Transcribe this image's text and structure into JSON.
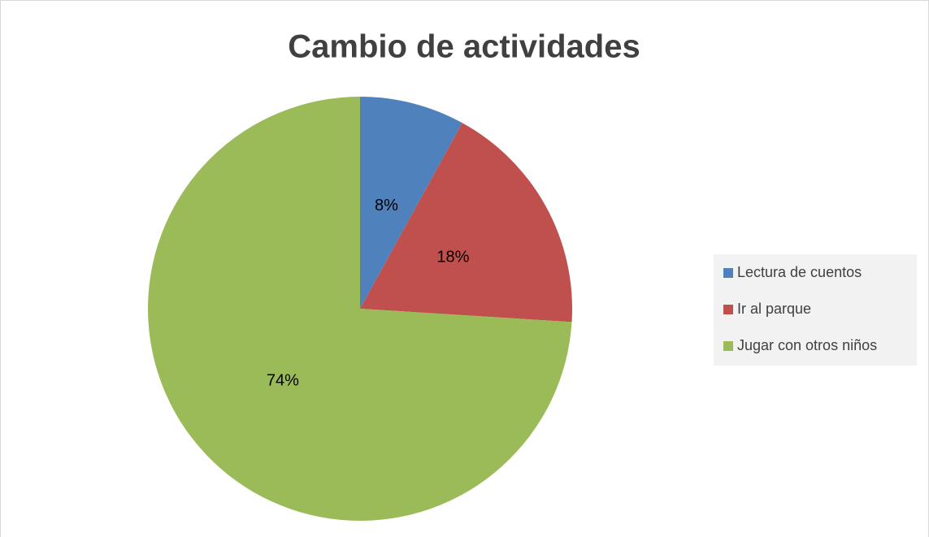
{
  "chart_data": {
    "type": "pie",
    "title": "Cambio de actividades",
    "categories": [
      "Lectura de cuentos",
      "Ir al parque",
      "Jugar con otros niños"
    ],
    "values": [
      8,
      18,
      74
    ],
    "value_labels": [
      "8%",
      "18%",
      "74%"
    ],
    "colors": [
      "#4f81bd",
      "#c0504d",
      "#9bbb59"
    ],
    "legend": "right"
  }
}
